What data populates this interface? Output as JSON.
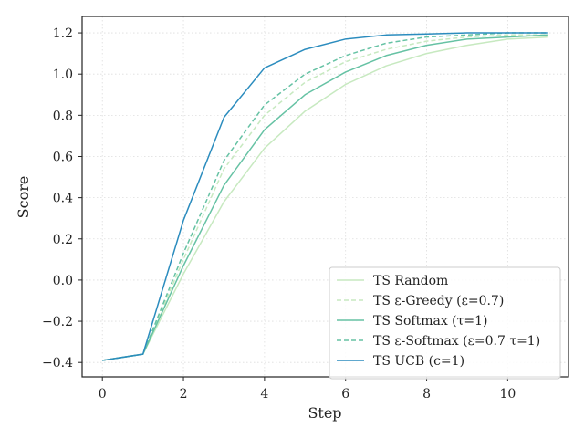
{
  "chart_data": {
    "type": "line",
    "title": "",
    "xlabel": "Step",
    "ylabel": "Score",
    "xlim": [
      -0.5,
      11.5
    ],
    "ylim": [
      -0.47,
      1.28
    ],
    "xticks": [
      0,
      2,
      4,
      6,
      8,
      10
    ],
    "yticks": [
      -0.4,
      -0.2,
      0.0,
      0.2,
      0.4,
      0.6,
      0.8,
      1.0,
      1.2
    ],
    "ytick_labels": [
      "−0.4",
      "−0.2",
      "0.0",
      "0.2",
      "0.4",
      "0.6",
      "0.8",
      "1.0",
      "1.2"
    ],
    "grid": true,
    "legend_position": "lower-right",
    "x": [
      0,
      1,
      2,
      3,
      4,
      5,
      6,
      7,
      8,
      9,
      10,
      11
    ],
    "series": [
      {
        "name": "TS Random",
        "color": "#c7e9c0",
        "dash": "solid",
        "values": [
          -0.39,
          -0.36,
          0.03,
          0.38,
          0.64,
          0.82,
          0.95,
          1.04,
          1.1,
          1.14,
          1.17,
          1.18
        ]
      },
      {
        "name": "TS ε-Greedy (ε=0.7)",
        "color": "#c7e9c0",
        "dash": "dashed",
        "values": [
          -0.39,
          -0.36,
          0.1,
          0.54,
          0.8,
          0.96,
          1.06,
          1.12,
          1.16,
          1.18,
          1.19,
          1.19
        ]
      },
      {
        "name": "TS Softmax (τ=1)",
        "color": "#66c2a4",
        "dash": "solid",
        "values": [
          -0.39,
          -0.36,
          0.07,
          0.46,
          0.73,
          0.9,
          1.01,
          1.09,
          1.14,
          1.17,
          1.18,
          1.19
        ]
      },
      {
        "name": "TS ε-Softmax (ε=0.7 τ=1)",
        "color": "#66c2a4",
        "dash": "dashed",
        "values": [
          -0.39,
          -0.36,
          0.13,
          0.58,
          0.85,
          1.0,
          1.09,
          1.15,
          1.18,
          1.19,
          1.2,
          1.2
        ]
      },
      {
        "name": "TS UCB (c=1)",
        "color": "#2b8cbe",
        "dash": "solid",
        "values": [
          -0.39,
          -0.36,
          0.29,
          0.79,
          1.03,
          1.12,
          1.17,
          1.19,
          1.195,
          1.2,
          1.2,
          1.2
        ]
      }
    ]
  }
}
